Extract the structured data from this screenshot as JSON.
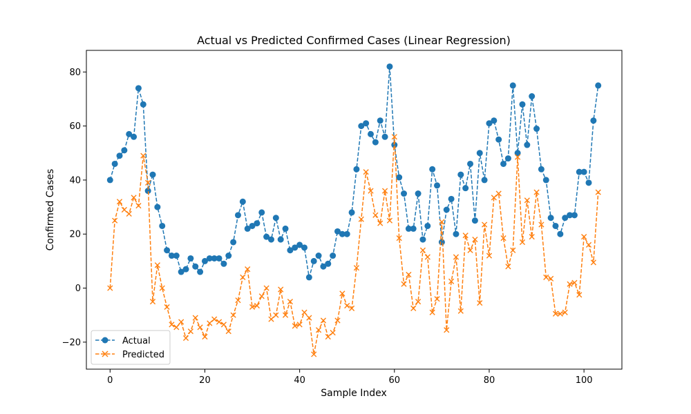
{
  "chart_data": {
    "type": "line",
    "title": "Actual vs Predicted Confirmed Cases (Linear Regression)",
    "xlabel": "Sample Index",
    "ylabel": "Confirmed Cases",
    "xlim": [
      -5,
      108
    ],
    "ylim": [
      -30,
      88
    ],
    "xticks": [
      0,
      20,
      40,
      60,
      80,
      100
    ],
    "yticks": [
      -20,
      0,
      20,
      40,
      60,
      80
    ],
    "grid": false,
    "legend_position": "lower-left",
    "series": [
      {
        "name": "Actual",
        "color": "#1f77b4",
        "marker": "circle",
        "linestyle": "dashed",
        "values": [
          40,
          46,
          49,
          51,
          57,
          56,
          74,
          68,
          36,
          42,
          30,
          23,
          14,
          12,
          12,
          6,
          7,
          11,
          8,
          6,
          10,
          11,
          11,
          11,
          9,
          12,
          17,
          27,
          32,
          22,
          23,
          24,
          28,
          19,
          18,
          26,
          18,
          22,
          14,
          15,
          16,
          15,
          4,
          10,
          12,
          8,
          9,
          12,
          21,
          20,
          20,
          28,
          44,
          60,
          61,
          57,
          54,
          62,
          56,
          82,
          53,
          41,
          35,
          22,
          22,
          35,
          18,
          23,
          44,
          38,
          17,
          29,
          33,
          20,
          42,
          37,
          46,
          25,
          50,
          40,
          61,
          62,
          55,
          46,
          48,
          75,
          50,
          68,
          53,
          71,
          59,
          44,
          40,
          26,
          23,
          20,
          26,
          27,
          27,
          43,
          43,
          39,
          62,
          75
        ]
      },
      {
        "name": "Predicted",
        "color": "#ff7f0e",
        "marker": "x",
        "linestyle": "dashed",
        "values": [
          0,
          25,
          32,
          29,
          27.5,
          33.5,
          30.5,
          49,
          39,
          -5,
          8.5,
          0,
          -7,
          -13.5,
          -14.5,
          -12.5,
          -18.5,
          -16,
          -11,
          -14.5,
          -18,
          -13,
          -11.5,
          -12.5,
          -13.5,
          -16,
          -10,
          -4.5,
          4,
          7,
          -7,
          -6.5,
          -3,
          0,
          -11.5,
          -10,
          -0.5,
          -10,
          -5,
          -14,
          -13.5,
          -9,
          -11,
          -24.5,
          -15.5,
          -12,
          -18,
          -16.5,
          -12,
          -2,
          -6.5,
          -7.5,
          7.5,
          25.5,
          43,
          36,
          27,
          24,
          36,
          25,
          56,
          18.5,
          1.5,
          5,
          -7.5,
          -5,
          14,
          11.5,
          -9,
          -4,
          24.5,
          -15.5,
          2.5,
          11.5,
          -8.5,
          19.5,
          14,
          18,
          -5.5,
          23.5,
          12,
          33.5,
          35,
          18.5,
          8,
          14,
          48.5,
          17,
          32.5,
          19,
          35.5,
          23.5,
          4,
          3.5,
          -9.5,
          -9.5,
          -9,
          1.5,
          2,
          -2.5,
          19,
          16,
          9.5,
          35.5
        ]
      }
    ]
  }
}
